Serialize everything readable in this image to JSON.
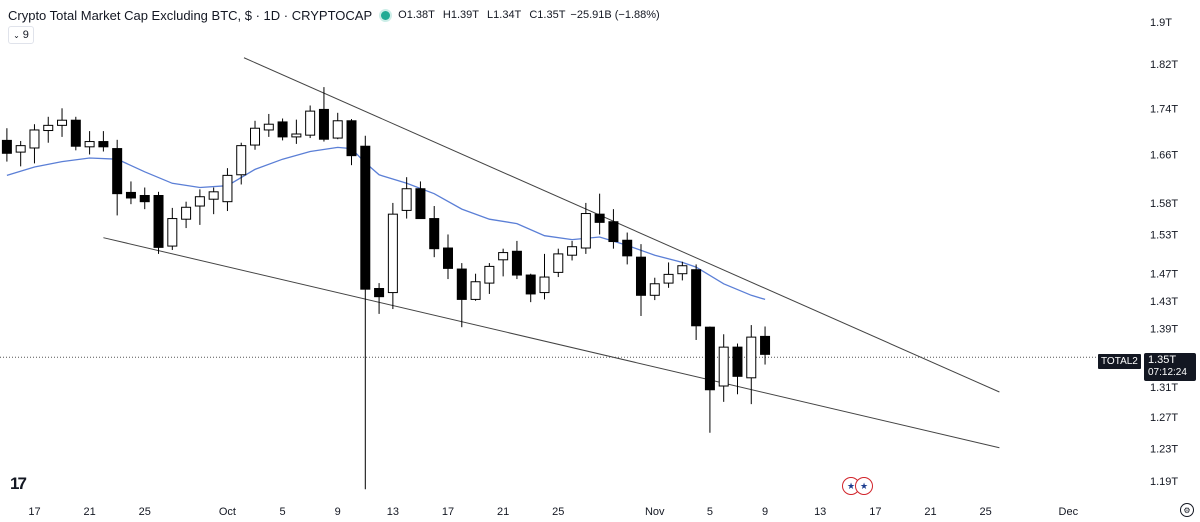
{
  "header": {
    "title": "Crypto Total Market Cap Excluding BTC, $ · 1D · CRYPTOCAP",
    "open": "O1.38T",
    "high": "H1.39T",
    "low": "L1.34T",
    "close": "C1.35T",
    "change": "−25.91B (−1.88%)",
    "indicator_toggle": "9"
  },
  "price_label": {
    "symbol": "TOTAL2",
    "value": "1.35T",
    "countdown": "07:12:24"
  },
  "colors": {
    "up_body": "#ffffff",
    "down_body": "#000000",
    "ma_line": "#5b7fd6",
    "trendline": "#444444"
  },
  "icons": [
    "tradingview-logo-icon",
    "economic-events-icon",
    "settings-gear-icon"
  ],
  "logo_text": "17",
  "chart_data": {
    "type": "candlestick",
    "y_scale": "log",
    "ylim": [
      1.18,
      1.92
    ],
    "y_ticks": [
      "1.9T",
      "1.82T",
      "1.74T",
      "1.66T",
      "1.58T",
      "1.53T",
      "1.47T",
      "1.43T",
      "1.39T",
      "1.31T",
      "1.27T",
      "1.23T",
      "1.19T"
    ],
    "y_tick_values": [
      1.9,
      1.82,
      1.74,
      1.66,
      1.58,
      1.53,
      1.47,
      1.43,
      1.39,
      1.31,
      1.27,
      1.23,
      1.19
    ],
    "x_ticks": [
      "17",
      "21",
      "25",
      "Oct",
      "5",
      "9",
      "13",
      "17",
      "21",
      "25",
      "Nov",
      "5",
      "9",
      "13",
      "17",
      "21",
      "25",
      "Dec"
    ],
    "x_tick_days": [
      0,
      4,
      8,
      14,
      18,
      22,
      26,
      30,
      34,
      38,
      45,
      49,
      53,
      57,
      61,
      65,
      69,
      75
    ],
    "x_day_range": [
      -2.5,
      80.2
    ],
    "candles": [
      {
        "d": -2,
        "o": 1.684,
        "h": 1.705,
        "l": 1.648,
        "c": 1.662
      },
      {
        "d": -1,
        "o": 1.664,
        "h": 1.683,
        "l": 1.64,
        "c": 1.675
      },
      {
        "d": 0,
        "o": 1.671,
        "h": 1.712,
        "l": 1.645,
        "c": 1.702
      },
      {
        "d": 1,
        "o": 1.701,
        "h": 1.725,
        "l": 1.68,
        "c": 1.71
      },
      {
        "d": 2,
        "o": 1.71,
        "h": 1.74,
        "l": 1.69,
        "c": 1.719
      },
      {
        "d": 3,
        "o": 1.719,
        "h": 1.725,
        "l": 1.667,
        "c": 1.674
      },
      {
        "d": 4,
        "o": 1.673,
        "h": 1.7,
        "l": 1.66,
        "c": 1.682
      },
      {
        "d": 5,
        "o": 1.682,
        "h": 1.7,
        "l": 1.665,
        "c": 1.673
      },
      {
        "d": 6,
        "o": 1.67,
        "h": 1.685,
        "l": 1.56,
        "c": 1.595
      },
      {
        "d": 7,
        "o": 1.597,
        "h": 1.615,
        "l": 1.578,
        "c": 1.588
      },
      {
        "d": 8,
        "o": 1.592,
        "h": 1.605,
        "l": 1.57,
        "c": 1.582
      },
      {
        "d": 9,
        "o": 1.592,
        "h": 1.598,
        "l": 1.5,
        "c": 1.51
      },
      {
        "d": 10,
        "o": 1.512,
        "h": 1.572,
        "l": 1.506,
        "c": 1.555
      },
      {
        "d": 11,
        "o": 1.554,
        "h": 1.582,
        "l": 1.54,
        "c": 1.573
      },
      {
        "d": 12,
        "o": 1.575,
        "h": 1.602,
        "l": 1.545,
        "c": 1.59
      },
      {
        "d": 13,
        "o": 1.586,
        "h": 1.605,
        "l": 1.562,
        "c": 1.598
      },
      {
        "d": 14,
        "o": 1.582,
        "h": 1.637,
        "l": 1.567,
        "c": 1.625
      },
      {
        "d": 15,
        "o": 1.626,
        "h": 1.68,
        "l": 1.61,
        "c": 1.675
      },
      {
        "d": 16,
        "o": 1.676,
        "h": 1.718,
        "l": 1.668,
        "c": 1.705
      },
      {
        "d": 17,
        "o": 1.702,
        "h": 1.73,
        "l": 1.69,
        "c": 1.712
      },
      {
        "d": 18,
        "o": 1.716,
        "h": 1.722,
        "l": 1.684,
        "c": 1.69
      },
      {
        "d": 19,
        "o": 1.69,
        "h": 1.72,
        "l": 1.678,
        "c": 1.695
      },
      {
        "d": 20,
        "o": 1.693,
        "h": 1.745,
        "l": 1.688,
        "c": 1.735
      },
      {
        "d": 21,
        "o": 1.738,
        "h": 1.778,
        "l": 1.682,
        "c": 1.686
      },
      {
        "d": 22,
        "o": 1.688,
        "h": 1.732,
        "l": 1.686,
        "c": 1.718
      },
      {
        "d": 23,
        "o": 1.718,
        "h": 1.721,
        "l": 1.642,
        "c": 1.658
      },
      {
        "d": 24,
        "o": 1.674,
        "h": 1.692,
        "l": 1.18,
        "c": 1.447
      },
      {
        "d": 25,
        "o": 1.448,
        "h": 1.456,
        "l": 1.411,
        "c": 1.436
      },
      {
        "d": 26,
        "o": 1.442,
        "h": 1.58,
        "l": 1.418,
        "c": 1.562
      },
      {
        "d": 27,
        "o": 1.568,
        "h": 1.622,
        "l": 1.555,
        "c": 1.603
      },
      {
        "d": 28,
        "o": 1.603,
        "h": 1.615,
        "l": 1.557,
        "c": 1.555
      },
      {
        "d": 29,
        "o": 1.555,
        "h": 1.575,
        "l": 1.495,
        "c": 1.508
      },
      {
        "d": 30,
        "o": 1.509,
        "h": 1.53,
        "l": 1.462,
        "c": 1.478
      },
      {
        "d": 31,
        "o": 1.477,
        "h": 1.486,
        "l": 1.392,
        "c": 1.432
      },
      {
        "d": 32,
        "o": 1.432,
        "h": 1.47,
        "l": 1.43,
        "c": 1.458
      },
      {
        "d": 33,
        "o": 1.456,
        "h": 1.486,
        "l": 1.44,
        "c": 1.481
      },
      {
        "d": 34,
        "o": 1.491,
        "h": 1.508,
        "l": 1.466,
        "c": 1.502
      },
      {
        "d": 35,
        "o": 1.504,
        "h": 1.52,
        "l": 1.462,
        "c": 1.468
      },
      {
        "d": 36,
        "o": 1.468,
        "h": 1.47,
        "l": 1.428,
        "c": 1.44
      },
      {
        "d": 37,
        "o": 1.442,
        "h": 1.5,
        "l": 1.432,
        "c": 1.465
      },
      {
        "d": 38,
        "o": 1.472,
        "h": 1.508,
        "l": 1.465,
        "c": 1.5
      },
      {
        "d": 39,
        "o": 1.498,
        "h": 1.52,
        "l": 1.49,
        "c": 1.511
      },
      {
        "d": 40,
        "o": 1.509,
        "h": 1.58,
        "l": 1.5,
        "c": 1.563
      },
      {
        "d": 41,
        "o": 1.562,
        "h": 1.595,
        "l": 1.53,
        "c": 1.549
      },
      {
        "d": 42,
        "o": 1.55,
        "h": 1.57,
        "l": 1.508,
        "c": 1.519
      },
      {
        "d": 43,
        "o": 1.521,
        "h": 1.533,
        "l": 1.484,
        "c": 1.497
      },
      {
        "d": 44,
        "o": 1.495,
        "h": 1.515,
        "l": 1.408,
        "c": 1.438
      },
      {
        "d": 45,
        "o": 1.438,
        "h": 1.464,
        "l": 1.431,
        "c": 1.455
      },
      {
        "d": 46,
        "o": 1.456,
        "h": 1.487,
        "l": 1.449,
        "c": 1.469
      },
      {
        "d": 47,
        "o": 1.47,
        "h": 1.488,
        "l": 1.46,
        "c": 1.482
      },
      {
        "d": 48,
        "o": 1.476,
        "h": 1.484,
        "l": 1.374,
        "c": 1.394
      },
      {
        "d": 49,
        "o": 1.392,
        "h": 1.393,
        "l": 1.25,
        "c": 1.306
      },
      {
        "d": 50,
        "o": 1.311,
        "h": 1.382,
        "l": 1.29,
        "c": 1.364
      },
      {
        "d": 51,
        "o": 1.364,
        "h": 1.369,
        "l": 1.3,
        "c": 1.324
      },
      {
        "d": 52,
        "o": 1.322,
        "h": 1.395,
        "l": 1.287,
        "c": 1.378
      },
      {
        "d": 53,
        "o": 1.379,
        "h": 1.393,
        "l": 1.34,
        "c": 1.354
      }
    ],
    "ma_line": [
      {
        "d": -2,
        "v": 1.625
      },
      {
        "d": 0,
        "v": 1.639
      },
      {
        "d": 2,
        "v": 1.648
      },
      {
        "d": 4,
        "v": 1.654
      },
      {
        "d": 6,
        "v": 1.652
      },
      {
        "d": 8,
        "v": 1.631
      },
      {
        "d": 10,
        "v": 1.612
      },
      {
        "d": 12,
        "v": 1.605
      },
      {
        "d": 14,
        "v": 1.608
      },
      {
        "d": 16,
        "v": 1.635
      },
      {
        "d": 18,
        "v": 1.652
      },
      {
        "d": 20,
        "v": 1.665
      },
      {
        "d": 22,
        "v": 1.672
      },
      {
        "d": 23,
        "v": 1.67
      },
      {
        "d": 24,
        "v": 1.646
      },
      {
        "d": 25,
        "v": 1.626
      },
      {
        "d": 27,
        "v": 1.612
      },
      {
        "d": 29,
        "v": 1.595
      },
      {
        "d": 31,
        "v": 1.57
      },
      {
        "d": 33,
        "v": 1.554
      },
      {
        "d": 35,
        "v": 1.547
      },
      {
        "d": 37,
        "v": 1.528
      },
      {
        "d": 39,
        "v": 1.522
      },
      {
        "d": 41,
        "v": 1.526
      },
      {
        "d": 43,
        "v": 1.513
      },
      {
        "d": 45,
        "v": 1.498
      },
      {
        "d": 47,
        "v": 1.487
      },
      {
        "d": 48,
        "v": 1.48
      },
      {
        "d": 50,
        "v": 1.455
      },
      {
        "d": 52,
        "v": 1.438
      },
      {
        "d": 53,
        "v": 1.432
      }
    ],
    "trendlines": [
      {
        "d1": 15.2,
        "v1": 1.832,
        "d2": 70.0,
        "v2": 1.303
      },
      {
        "d1": 5.0,
        "v1": 1.525,
        "d2": 70.0,
        "v2": 1.231
      }
    ],
    "last_price": 1.35
  }
}
